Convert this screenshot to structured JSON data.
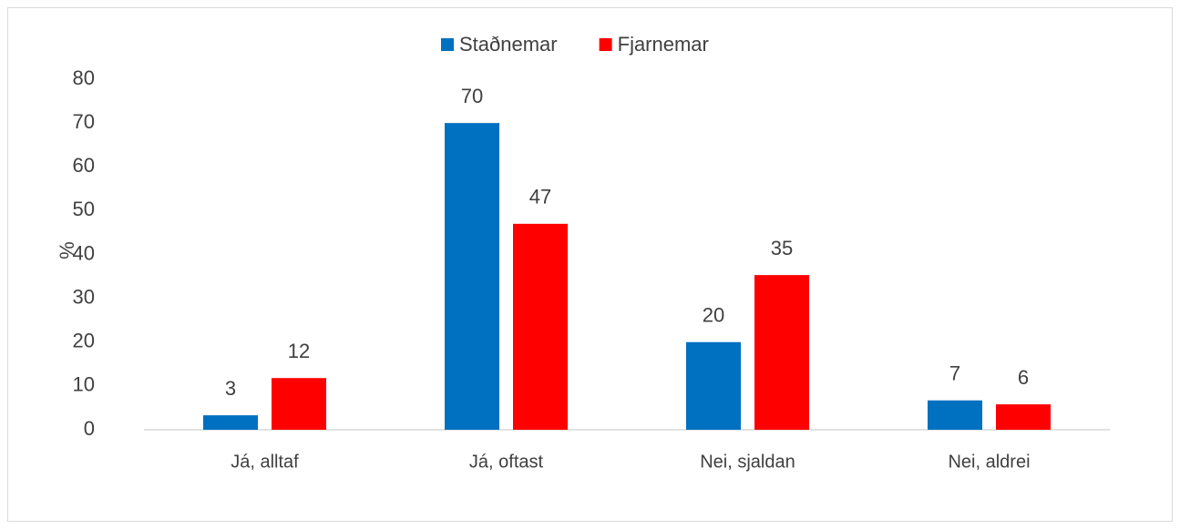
{
  "chart_data": {
    "type": "bar",
    "categories": [
      "Já, alltaf",
      "Já, oftast",
      "Nei, sjaldan",
      "Nei, aldrei"
    ],
    "series": [
      {
        "name": "Staðnemar",
        "color": "#0070c0",
        "values": [
          3.3,
          70,
          20,
          6.7
        ],
        "value_labels": [
          "3",
          "70",
          "20",
          "7"
        ]
      },
      {
        "name": "Fjarnemar",
        "color": "#ff0000",
        "values": [
          11.8,
          47,
          35.3,
          5.8
        ],
        "value_labels": [
          "12",
          "47",
          "35",
          "6"
        ]
      }
    ],
    "ylabel": "%",
    "ylim": [
      0,
      80
    ],
    "yticks": [
      0,
      10,
      20,
      30,
      40,
      50,
      60,
      70,
      80
    ],
    "grid": false,
    "legend": "top"
  }
}
